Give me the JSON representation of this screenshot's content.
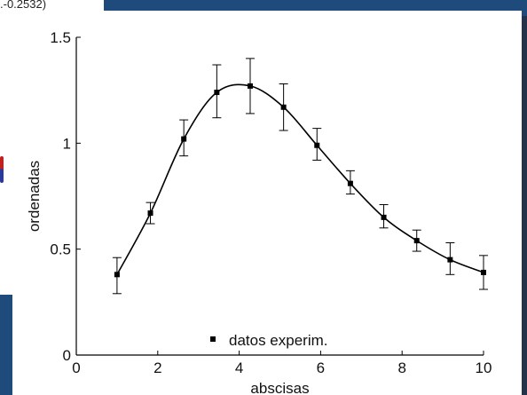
{
  "background": {
    "caption": ".-0.2532)",
    "band_color": "#1f4a7c",
    "strip_color": "#24324a"
  },
  "chart_data": {
    "type": "line",
    "title": "",
    "xlabel": "abscisas",
    "ylabel": "ordenadas",
    "xlim": [
      0,
      10
    ],
    "ylim": [
      0,
      1.5
    ],
    "x_ticks": [
      0,
      2,
      4,
      6,
      8,
      10
    ],
    "y_ticks": [
      0,
      0.5,
      1,
      1.5
    ],
    "x_tick_labels": [
      "0",
      "2",
      "4",
      "6",
      "8",
      "10"
    ],
    "y_tick_labels": [
      "0",
      "0.5",
      "1",
      "1.5"
    ],
    "grid": false,
    "legend_position": "bottom-center",
    "series": [
      {
        "name": "datos experim.",
        "marker": "square",
        "color": "#000000",
        "x": [
          1.0,
          1.82,
          2.64,
          3.45,
          4.27,
          5.09,
          5.91,
          6.73,
          7.55,
          8.36,
          9.18,
          10.0
        ],
        "y": [
          0.38,
          0.67,
          1.02,
          1.24,
          1.27,
          1.17,
          0.99,
          0.81,
          0.65,
          0.54,
          0.45,
          0.39
        ],
        "err_low": [
          0.29,
          0.62,
          0.94,
          1.12,
          1.14,
          1.06,
          0.92,
          0.76,
          0.6,
          0.49,
          0.38,
          0.31
        ],
        "err_high": [
          0.46,
          0.72,
          1.11,
          1.37,
          1.4,
          1.28,
          1.07,
          0.87,
          0.71,
          0.59,
          0.53,
          0.47
        ]
      }
    ]
  }
}
